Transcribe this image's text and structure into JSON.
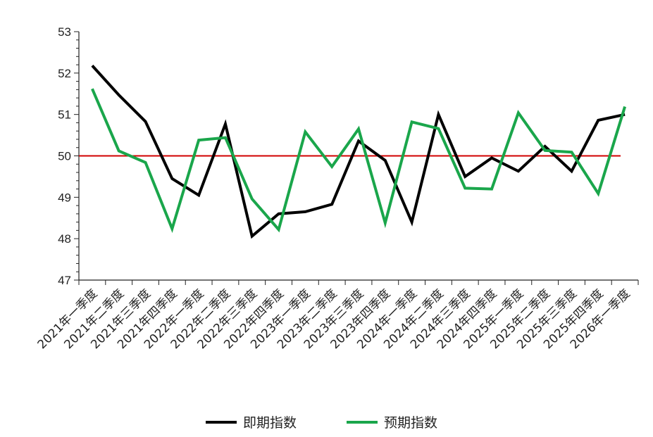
{
  "chart_data": {
    "type": "line",
    "title": "",
    "xlabel": "",
    "ylabel": "",
    "ylim": [
      47,
      53
    ],
    "yticks": [
      "47",
      "48",
      "49",
      "50",
      "51",
      "52",
      "53"
    ],
    "grid": false,
    "legend_position": "bottom",
    "reference_line": {
      "value": 50,
      "color": "#d00000"
    },
    "categories": [
      "2021年一季度",
      "2021年二季度",
      "2021年三季度",
      "2021年四季度",
      "2022年一季度",
      "2022年二季度",
      "2022年三季度",
      "2022年四季度",
      "2023年一季度",
      "2023年二季度",
      "2023年三季度",
      "2023年四季度",
      "2024年一季度",
      "2024年二季度",
      "2024年三季度",
      "2024年四季度",
      "2025年一季度",
      "2025年二季度",
      "2025年三季度",
      "2025年四季度",
      "2026年一季度"
    ],
    "series": [
      {
        "name": "即期指数",
        "color": "#000000",
        "values": [
          52.18,
          51.47,
          50.83,
          49.45,
          49.05,
          50.77,
          48.06,
          48.6,
          48.65,
          48.83,
          50.36,
          49.89,
          48.4,
          51.0,
          49.5,
          49.95,
          49.63,
          50.23,
          49.63,
          50.86,
          51.0
        ]
      },
      {
        "name": "预期指数",
        "color": "#1aa64b",
        "values": [
          51.62,
          50.12,
          49.84,
          48.24,
          50.38,
          50.44,
          48.96,
          48.22,
          50.58,
          49.74,
          50.65,
          48.38,
          50.82,
          50.66,
          49.22,
          49.2,
          51.04,
          50.13,
          50.09,
          49.09,
          51.19
        ]
      }
    ]
  }
}
